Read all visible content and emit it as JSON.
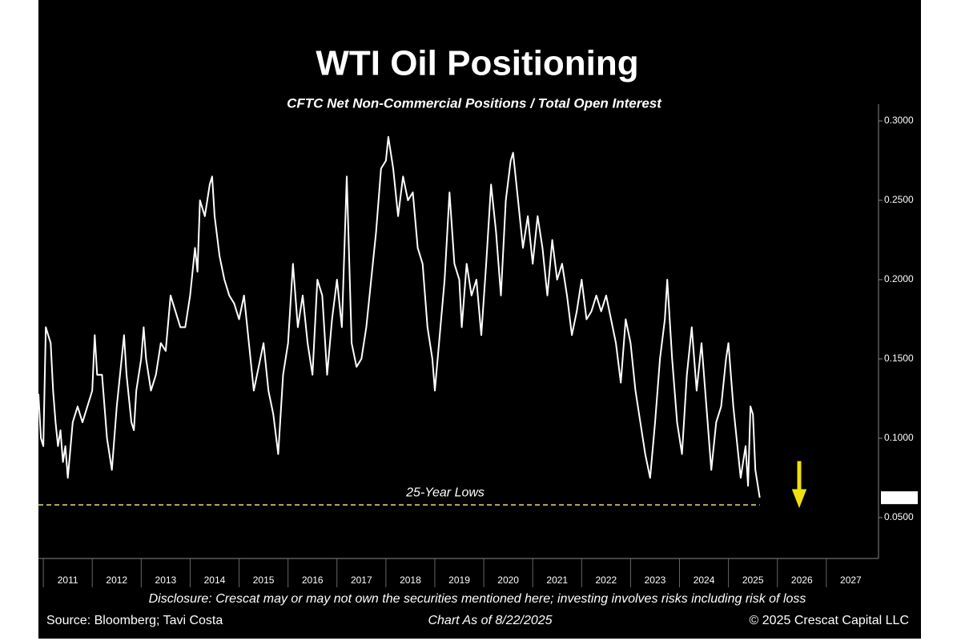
{
  "chart_data": {
    "type": "line",
    "title": "WTI Oil Positioning",
    "subtitle": "CFTC Net Non-Commercial Positions / Total Open Interest",
    "x": [
      2010.9,
      2010.95,
      2011.0,
      2011.05,
      2011.1,
      2011.15,
      2011.2,
      2011.25,
      2011.3,
      2011.35,
      2011.4,
      2011.45,
      2011.5,
      2011.6,
      2011.7,
      2011.8,
      2011.9,
      2012.0,
      2012.05,
      2012.1,
      2012.2,
      2012.3,
      2012.4,
      2012.5,
      2012.6,
      2012.65,
      2012.7,
      2012.8,
      2012.85,
      2012.9,
      2013.0,
      2013.05,
      2013.1,
      2013.2,
      2013.3,
      2013.4,
      2013.5,
      2013.6,
      2013.7,
      2013.8,
      2013.9,
      2014.0,
      2014.1,
      2014.15,
      2014.2,
      2014.3,
      2014.4,
      2014.45,
      2014.5,
      2014.6,
      2014.7,
      2014.8,
      2014.9,
      2015.0,
      2015.1,
      2015.2,
      2015.3,
      2015.4,
      2015.5,
      2015.6,
      2015.7,
      2015.8,
      2015.9,
      2016.0,
      2016.1,
      2016.2,
      2016.3,
      2016.4,
      2016.5,
      2016.6,
      2016.7,
      2016.8,
      2016.9,
      2017.0,
      2017.1,
      2017.2,
      2017.3,
      2017.4,
      2017.5,
      2017.6,
      2017.7,
      2017.8,
      2017.9,
      2018.0,
      2018.05,
      2018.15,
      2018.25,
      2018.35,
      2018.45,
      2018.55,
      2018.65,
      2018.75,
      2018.85,
      2018.95,
      2019.0,
      2019.1,
      2019.2,
      2019.3,
      2019.4,
      2019.5,
      2019.55,
      2019.65,
      2019.75,
      2019.85,
      2019.95,
      2020.05,
      2020.15,
      2020.25,
      2020.35,
      2020.45,
      2020.55,
      2020.6,
      2020.7,
      2020.8,
      2020.9,
      2021.0,
      2021.1,
      2021.2,
      2021.3,
      2021.4,
      2021.5,
      2021.6,
      2021.7,
      2021.8,
      2021.9,
      2022.0,
      2022.1,
      2022.2,
      2022.3,
      2022.4,
      2022.5,
      2022.6,
      2022.7,
      2022.8,
      2022.9,
      2023.0,
      2023.1,
      2023.2,
      2023.3,
      2023.4,
      2023.5,
      2023.6,
      2023.7,
      2023.75,
      2023.85,
      2023.95,
      2024.05,
      2024.15,
      2024.25,
      2024.35,
      2024.45,
      2024.55,
      2024.65,
      2024.75,
      2024.85,
      2024.95,
      2025.0,
      2025.1,
      2025.2,
      2025.25,
      2025.35,
      2025.4,
      2025.45,
      2025.5,
      2025.55,
      2025.64
    ],
    "series": [
      {
        "color": "#ffffff",
        "values": [
          0.128,
          0.1,
          0.095,
          0.17,
          0.165,
          0.16,
          0.13,
          0.11,
          0.095,
          0.105,
          0.085,
          0.095,
          0.075,
          0.11,
          0.12,
          0.11,
          0.12,
          0.13,
          0.165,
          0.14,
          0.14,
          0.1,
          0.08,
          0.12,
          0.15,
          0.165,
          0.14,
          0.11,
          0.105,
          0.13,
          0.15,
          0.17,
          0.15,
          0.13,
          0.14,
          0.16,
          0.155,
          0.19,
          0.18,
          0.17,
          0.17,
          0.19,
          0.22,
          0.205,
          0.25,
          0.24,
          0.26,
          0.265,
          0.24,
          0.215,
          0.2,
          0.19,
          0.185,
          0.175,
          0.19,
          0.16,
          0.13,
          0.145,
          0.16,
          0.13,
          0.115,
          0.09,
          0.14,
          0.16,
          0.21,
          0.17,
          0.19,
          0.16,
          0.14,
          0.2,
          0.19,
          0.14,
          0.175,
          0.2,
          0.17,
          0.265,
          0.16,
          0.145,
          0.15,
          0.17,
          0.2,
          0.23,
          0.27,
          0.275,
          0.29,
          0.27,
          0.24,
          0.265,
          0.25,
          0.255,
          0.22,
          0.21,
          0.17,
          0.15,
          0.13,
          0.165,
          0.2,
          0.255,
          0.21,
          0.2,
          0.17,
          0.21,
          0.19,
          0.2,
          0.165,
          0.21,
          0.26,
          0.23,
          0.19,
          0.25,
          0.275,
          0.28,
          0.25,
          0.22,
          0.24,
          0.21,
          0.24,
          0.22,
          0.19,
          0.225,
          0.2,
          0.21,
          0.19,
          0.165,
          0.18,
          0.2,
          0.175,
          0.18,
          0.19,
          0.18,
          0.19,
          0.175,
          0.16,
          0.135,
          0.175,
          0.16,
          0.13,
          0.11,
          0.09,
          0.075,
          0.11,
          0.15,
          0.175,
          0.2,
          0.15,
          0.11,
          0.09,
          0.14,
          0.17,
          0.13,
          0.16,
          0.12,
          0.08,
          0.11,
          0.12,
          0.15,
          0.16,
          0.12,
          0.09,
          0.075,
          0.095,
          0.07,
          0.12,
          0.115,
          0.08,
          0.0625
        ],
        "value_labels": [
          null,
          null,
          null,
          null,
          null,
          null,
          null,
          null,
          null,
          null,
          null,
          null,
          null,
          null,
          null,
          null,
          null,
          null,
          null,
          null,
          null,
          null,
          null,
          null,
          null,
          null,
          null,
          null,
          null,
          null,
          null,
          null,
          null,
          null,
          null,
          null,
          null,
          null,
          null,
          null,
          null,
          null,
          null,
          null,
          null,
          null,
          null,
          null,
          null,
          null,
          null,
          null,
          null,
          null,
          null,
          null,
          null,
          null,
          null,
          null,
          null,
          null,
          null,
          null,
          null,
          null,
          null,
          null,
          null,
          null,
          null,
          null,
          null,
          null,
          null,
          null,
          null,
          null,
          null,
          null,
          null,
          null,
          null,
          null,
          null,
          null,
          null,
          null,
          null,
          null,
          null,
          null,
          null,
          null,
          null,
          null,
          null,
          null,
          null,
          null,
          null,
          null,
          null,
          null,
          null,
          null,
          null,
          null,
          null,
          null,
          null,
          null,
          null,
          null,
          null,
          null,
          null,
          null,
          null,
          null,
          null,
          null,
          null,
          null,
          null,
          null,
          null,
          null,
          null,
          null,
          null,
          null,
          null,
          null,
          null,
          null,
          null,
          null,
          null,
          null,
          null,
          null,
          null,
          null,
          null,
          null,
          null,
          null,
          null,
          null,
          null,
          null,
          null,
          null,
          null,
          null,
          null,
          null,
          null,
          null,
          null,
          null,
          null,
          null,
          null,
          "0.0625"
        ]
      }
    ],
    "xlim": [
      2010.9,
      2028.05
    ],
    "xticks": [
      {
        "value": 2011.5,
        "label": "2011"
      },
      {
        "value": 2012.5,
        "label": "2012"
      },
      {
        "value": 2013.5,
        "label": "2013"
      },
      {
        "value": 2014.5,
        "label": "2014"
      },
      {
        "value": 2015.5,
        "label": "2015"
      },
      {
        "value": 2016.5,
        "label": "2016"
      },
      {
        "value": 2017.5,
        "label": "2017"
      },
      {
        "value": 2018.5,
        "label": "2018"
      },
      {
        "value": 2019.5,
        "label": "2019"
      },
      {
        "value": 2020.5,
        "label": "2020"
      },
      {
        "value": 2021.5,
        "label": "2021"
      },
      {
        "value": 2022.5,
        "label": "2022"
      },
      {
        "value": 2023.5,
        "label": "2023"
      },
      {
        "value": 2024.5,
        "label": "2024"
      },
      {
        "value": 2025.5,
        "label": "2025"
      },
      {
        "value": 2026.5,
        "label": "2026"
      },
      {
        "value": 2027.5,
        "label": "2027"
      }
    ],
    "ylim": [
      0.0242,
      0.3106
    ],
    "yticks": [
      {
        "value": 0.05,
        "label": "0.0500"
      },
      {
        "value": 0.1,
        "label": "0.1000"
      },
      {
        "value": 0.15,
        "label": "0.1500"
      },
      {
        "value": 0.2,
        "label": "0.2000"
      },
      {
        "value": 0.25,
        "label": "0.2500"
      },
      {
        "value": 0.3,
        "label": "0.3000"
      }
    ],
    "reference_line": {
      "value": 0.058,
      "label": "25-Year Lows",
      "color": "#e8e27a"
    },
    "disclosure": "Disclosure: Crescat may or may not own the securities mentioned here; investing involves risks including risk of loss",
    "source": "Source: Bloomberg; Tavi Costa",
    "as_of": "Chart As of 8/22/2025",
    "copyright": "© 2025 Crescat Capital LLC"
  }
}
